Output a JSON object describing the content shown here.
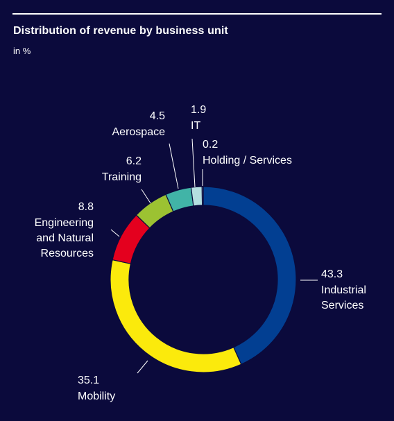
{
  "chart_data": {
    "type": "pie",
    "title": "Distribution of revenue by business unit",
    "subtitle": "in %",
    "series": [
      {
        "name": "Industrial Services",
        "label": [
          "Industrial",
          "Services"
        ],
        "value": 43.3,
        "value_label": "43.3",
        "color": "#023f92"
      },
      {
        "name": "Mobility",
        "label": [
          "Mobility"
        ],
        "value": 35.1,
        "value_label": "35.1",
        "color": "#fbea0c"
      },
      {
        "name": "Engineering and Natural Resources",
        "label": [
          "Engineering",
          "and Natural",
          "Resources"
        ],
        "value": 8.8,
        "value_label": "8.8",
        "color": "#e4001e"
      },
      {
        "name": "Training",
        "label": [
          "Training"
        ],
        "value": 6.2,
        "value_label": "6.2",
        "color": "#9cc232"
      },
      {
        "name": "Aerospace",
        "label": [
          "Aerospace"
        ],
        "value": 4.5,
        "value_label": "4.5",
        "color": "#41b4a7"
      },
      {
        "name": "IT",
        "label": [
          "IT"
        ],
        "value": 1.9,
        "value_label": "1.9",
        "color": "#b5dfe0"
      },
      {
        "name": "Holding / Services",
        "label": [
          "Holding / Services"
        ],
        "value": 0.2,
        "value_label": "0.2",
        "color": "#8e9bbf"
      }
    ]
  }
}
